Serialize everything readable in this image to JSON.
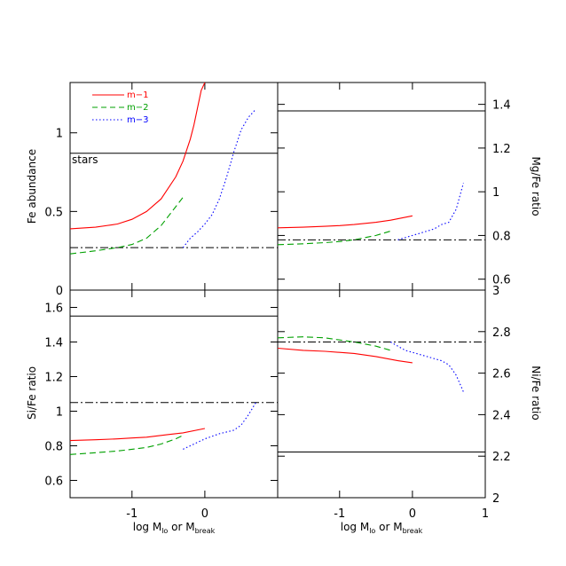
{
  "chart_data": [
    {
      "id": "fe",
      "type": "line",
      "ylabel": "Fe abundance",
      "xlim": [
        -1.85,
        1.0
      ],
      "ylim": [
        0.0,
        1.32
      ],
      "yticks": [
        0,
        0.5,
        1
      ],
      "ytick_labels": [
        "0",
        "0.5",
        "1"
      ],
      "xticks": [
        -1,
        0
      ],
      "xtick_labels": [],
      "annotations": [
        {
          "text": "stars",
          "x": -1.85,
          "y": 0.8
        }
      ],
      "reference_lines": [
        {
          "style": "solid",
          "y": 0.87
        },
        {
          "style": "dashdot",
          "y": 0.27
        }
      ],
      "series": [
        {
          "name": "m−1",
          "color": "#ff0000",
          "dash": "solid",
          "x": [
            -1.85,
            -1.5,
            -1.2,
            -1.0,
            -0.8,
            -0.6,
            -0.4,
            -0.3,
            -0.2,
            -0.15,
            -0.1,
            -0.05,
            0.0
          ],
          "y": [
            0.39,
            0.4,
            0.42,
            0.45,
            0.5,
            0.58,
            0.72,
            0.82,
            0.96,
            1.05,
            1.16,
            1.27,
            1.32
          ]
        },
        {
          "name": "m−2",
          "color": "#00a000",
          "dash": "dash",
          "x": [
            -1.85,
            -1.5,
            -1.2,
            -1.0,
            -0.8,
            -0.6,
            -0.5,
            -0.4,
            -0.3
          ],
          "y": [
            0.23,
            0.25,
            0.27,
            0.29,
            0.33,
            0.41,
            0.47,
            0.53,
            0.59
          ]
        },
        {
          "name": "m−3",
          "color": "#0000ff",
          "dash": "dot",
          "x": [
            -0.3,
            -0.2,
            -0.1,
            0.0,
            0.1,
            0.2,
            0.3,
            0.4,
            0.5,
            0.6,
            0.7
          ],
          "y": [
            0.27,
            0.33,
            0.37,
            0.42,
            0.48,
            0.58,
            0.72,
            0.88,
            1.02,
            1.1,
            1.15
          ]
        }
      ]
    },
    {
      "id": "mg",
      "type": "line",
      "ylabel": "Mg/Fe ratio",
      "xlim": [
        -1.85,
        1.0
      ],
      "ylim": [
        0.55,
        1.5
      ],
      "yticks": [
        0.6,
        0.8,
        1.0,
        1.2,
        1.4
      ],
      "ytick_labels": [
        "0.6",
        "0.8",
        "1",
        "1.2",
        "1.4"
      ],
      "xticks": [
        -1,
        0,
        1
      ],
      "xtick_labels": [],
      "reference_lines": [
        {
          "style": "solid",
          "y": 1.37
        },
        {
          "style": "dashdot",
          "y": 0.78
        }
      ],
      "series": [
        {
          "name": "m−1",
          "color": "#ff0000",
          "dash": "solid",
          "x": [
            -1.85,
            -1.5,
            -1.2,
            -1.0,
            -0.8,
            -0.5,
            -0.3,
            0.0
          ],
          "y": [
            0.835,
            0.838,
            0.842,
            0.845,
            0.85,
            0.86,
            0.87,
            0.89
          ]
        },
        {
          "name": "m−2",
          "color": "#00a000",
          "dash": "dash",
          "x": [
            -1.85,
            -1.5,
            -1.2,
            -1.0,
            -0.8,
            -0.5,
            -0.3
          ],
          "y": [
            0.758,
            0.762,
            0.767,
            0.772,
            0.78,
            0.8,
            0.82
          ]
        },
        {
          "name": "m−3",
          "color": "#0000ff",
          "dash": "dot",
          "x": [
            -0.2,
            -0.1,
            0.0,
            0.1,
            0.2,
            0.3,
            0.4,
            0.5,
            0.6,
            0.7
          ],
          "y": [
            0.78,
            0.79,
            0.8,
            0.81,
            0.82,
            0.83,
            0.85,
            0.86,
            0.92,
            1.04
          ]
        }
      ]
    },
    {
      "id": "si",
      "type": "line",
      "ylabel": "Si/Fe ratio",
      "xlim": [
        -1.85,
        1.0
      ],
      "ylim": [
        0.5,
        1.7
      ],
      "yticks": [
        0.6,
        0.8,
        1.0,
        1.2,
        1.4,
        1.6
      ],
      "ytick_labels": [
        "0.6",
        "0.8",
        "1",
        "1.2",
        "1.4",
        "1.6"
      ],
      "xticks": [
        -1,
        0
      ],
      "xtick_labels": [
        "-1",
        "0"
      ],
      "xlabel": "log M lo or M break",
      "reference_lines": [
        {
          "style": "solid",
          "y": 1.55
        },
        {
          "style": "dashdot",
          "y": 1.05
        }
      ],
      "series": [
        {
          "name": "m−1",
          "color": "#ff0000",
          "dash": "solid",
          "x": [
            -1.85,
            -1.5,
            -1.2,
            -1.0,
            -0.8,
            -0.5,
            -0.3,
            0.0
          ],
          "y": [
            0.83,
            0.835,
            0.84,
            0.845,
            0.85,
            0.865,
            0.875,
            0.9
          ]
        },
        {
          "name": "m−2",
          "color": "#00a000",
          "dash": "dash",
          "x": [
            -1.85,
            -1.5,
            -1.2,
            -1.0,
            -0.8,
            -0.6,
            -0.4,
            -0.3
          ],
          "y": [
            0.75,
            0.76,
            0.77,
            0.78,
            0.79,
            0.81,
            0.84,
            0.86
          ]
        },
        {
          "name": "m−3",
          "color": "#0000ff",
          "dash": "dot",
          "x": [
            -0.3,
            -0.2,
            -0.1,
            0.0,
            0.2,
            0.4,
            0.5,
            0.6,
            0.7
          ],
          "y": [
            0.78,
            0.8,
            0.82,
            0.84,
            0.87,
            0.89,
            0.92,
            0.98,
            1.05
          ]
        }
      ]
    },
    {
      "id": "ni",
      "type": "line",
      "ylabel": "Ni/Fe ratio",
      "xlim": [
        -1.85,
        1.0
      ],
      "ylim": [
        2.0,
        3.0
      ],
      "yticks": [
        2.0,
        2.2,
        2.4,
        2.6,
        2.8,
        3.0
      ],
      "ytick_labels": [
        "2",
        "2.2",
        "2.4",
        "2.6",
        "2.8",
        "3"
      ],
      "xticks": [
        -1,
        0,
        1
      ],
      "xtick_labels": [
        "-1",
        "0",
        "1"
      ],
      "xlabel": "log M lo or M break",
      "reference_lines": [
        {
          "style": "solid",
          "y": 2.22
        },
        {
          "style": "dashdot",
          "y": 2.75
        }
      ],
      "series": [
        {
          "name": "m−1",
          "color": "#ff0000",
          "dash": "solid",
          "x": [
            -1.85,
            -1.5,
            -1.2,
            -1.0,
            -0.8,
            -0.5,
            -0.2,
            0.0
          ],
          "y": [
            2.72,
            2.71,
            2.705,
            2.7,
            2.695,
            2.68,
            2.66,
            2.65
          ]
        },
        {
          "name": "m−2",
          "color": "#00a000",
          "dash": "dash",
          "x": [
            -1.85,
            -1.5,
            -1.2,
            -1.0,
            -0.8,
            -0.5,
            -0.3
          ],
          "y": [
            2.77,
            2.775,
            2.77,
            2.76,
            2.75,
            2.73,
            2.71
          ]
        },
        {
          "name": "m−3",
          "color": "#0000ff",
          "dash": "dot",
          "x": [
            -0.3,
            -0.2,
            -0.1,
            0.0,
            0.2,
            0.4,
            0.5,
            0.6,
            0.7
          ],
          "y": [
            2.75,
            2.73,
            2.71,
            2.7,
            2.68,
            2.66,
            2.64,
            2.59,
            2.51
          ]
        }
      ]
    }
  ],
  "legend": {
    "placement": "top-left",
    "entries": [
      {
        "label": "m−1",
        "color": "#ff0000",
        "dash": "solid"
      },
      {
        "label": "m−2",
        "color": "#00a000",
        "dash": "dash"
      },
      {
        "label": "m−3",
        "color": "#0000ff",
        "dash": "dot"
      }
    ]
  },
  "xlabel_parts": {
    "prefix": "log M",
    "sub1": "lo",
    "mid": " or M",
    "sub2": "break"
  }
}
